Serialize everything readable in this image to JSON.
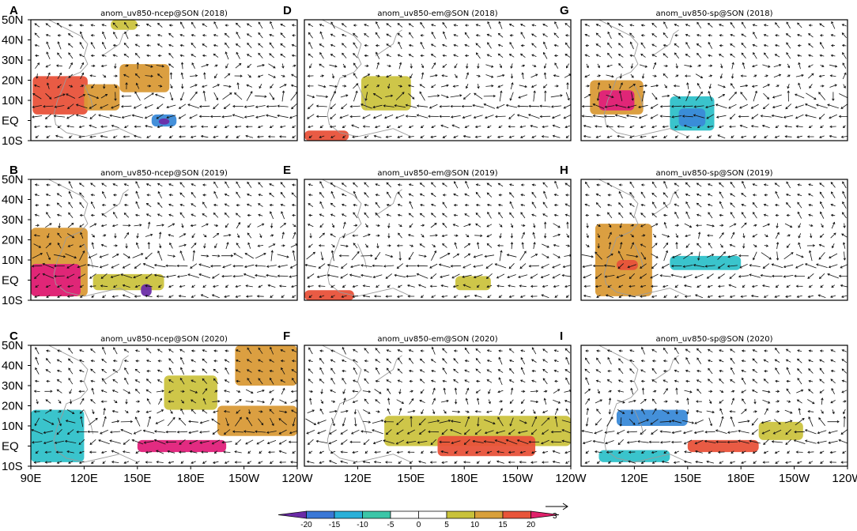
{
  "chart_data": {
    "type": "vector_anomaly_map_grid",
    "units_note": "850-hPa wind anomalies (vectors) with shaded anomaly field, SON",
    "panels": [
      {
        "label": "A",
        "title": "anom_uv850-ncep@SON (2018)",
        "row": 0,
        "col": 0
      },
      {
        "label": "D",
        "title": "anom_uv850-em@SON (2018)",
        "row": 0,
        "col": 1
      },
      {
        "label": "G",
        "title": "anom_uv850-sp@SON (2018)",
        "row": 0,
        "col": 2
      },
      {
        "label": "B",
        "title": "anom_uv850-ncep@SON (2019)",
        "row": 1,
        "col": 0
      },
      {
        "label": "E",
        "title": "anom_uv850-em@SON (2019)",
        "row": 1,
        "col": 1
      },
      {
        "label": "H",
        "title": "anom_uv850-sp@SON (2019)",
        "row": 1,
        "col": 2
      },
      {
        "label": "C",
        "title": "anom_uv850-ncep@SON (2020)",
        "row": 2,
        "col": 0
      },
      {
        "label": "F",
        "title": "anom_uv850-em@SON (2020)",
        "row": 2,
        "col": 1
      },
      {
        "label": "I",
        "title": "anom_uv850-sp@SON (2020)",
        "row": 2,
        "col": 2
      }
    ],
    "y_axis": {
      "ticks": [
        "50N",
        "40N",
        "30N",
        "20N",
        "10N",
        "EQ",
        "10S"
      ],
      "range": [
        -10,
        50
      ]
    },
    "x_axis": [
      {
        "col": 0,
        "ticks": [
          "90E",
          "120E",
          "150E",
          "180E",
          "150W",
          "120W"
        ]
      },
      {
        "col": 1,
        "ticks": [
          "120E",
          "150E",
          "180E",
          "150W",
          "120W"
        ]
      },
      {
        "col": 2,
        "ticks": [
          "120E",
          "150E",
          "180E",
          "150W",
          "120W"
        ]
      }
    ],
    "x_range_lon": [
      90,
      240
    ],
    "colorbar": {
      "ticks": [
        "-20",
        "-15",
        "-10",
        "-5",
        "0",
        "5",
        "10",
        "15",
        "20"
      ],
      "colors": [
        "#6a2aa6",
        "#3a78d6",
        "#2ab0d8",
        "#3cc6a8",
        "#ffffff",
        "#ffffff",
        "#c8c23a",
        "#d8a03a",
        "#e8553a",
        "#e0206a"
      ]
    },
    "reference_vector": {
      "label": "3"
    },
    "shading_colors": {
      "yellow": "#cbc33f",
      "orange": "#d99a37",
      "red": "#e8523a",
      "magenta": "#e0207a",
      "cyan": "#2fc1c9",
      "blue": "#3a8ad8",
      "purple": "#6b2da8"
    },
    "anomaly_patches": [
      {
        "panel": "A",
        "lon0": 91,
        "lon1": 122,
        "lat0": 3,
        "lat1": 22,
        "level": "red"
      },
      {
        "panel": "A",
        "lon0": 120,
        "lon1": 140,
        "lat0": 5,
        "lat1": 18,
        "level": "orange"
      },
      {
        "panel": "A",
        "lon0": 140,
        "lon1": 168,
        "lat0": 14,
        "lat1": 28,
        "level": "orange"
      },
      {
        "panel": "A",
        "lon0": 158,
        "lon1": 172,
        "lat0": -3,
        "lat1": 3,
        "level": "blue"
      },
      {
        "panel": "A",
        "lon0": 162,
        "lon1": 168,
        "lat0": -2,
        "lat1": 1,
        "level": "purple"
      },
      {
        "panel": "A",
        "lon0": 135,
        "lon1": 150,
        "lat0": 45,
        "lat1": 50,
        "level": "yellow"
      },
      {
        "panel": "D",
        "lon0": 122,
        "lon1": 150,
        "lat0": 5,
        "lat1": 22,
        "level": "yellow"
      },
      {
        "panel": "D",
        "lon0": 90,
        "lon1": 115,
        "lat0": -10,
        "lat1": -5,
        "level": "red"
      },
      {
        "panel": "G",
        "lon0": 95,
        "lon1": 125,
        "lat0": 3,
        "lat1": 20,
        "level": "orange"
      },
      {
        "panel": "G",
        "lon0": 100,
        "lon1": 120,
        "lat0": 5,
        "lat1": 15,
        "level": "magenta"
      },
      {
        "panel": "G",
        "lon0": 140,
        "lon1": 165,
        "lat0": -5,
        "lat1": 12,
        "level": "cyan"
      },
      {
        "panel": "G",
        "lon0": 145,
        "lon1": 160,
        "lat0": -3,
        "lat1": 6,
        "level": "blue"
      },
      {
        "panel": "B",
        "lon0": 90,
        "lon1": 122,
        "lat0": -8,
        "lat1": 26,
        "level": "orange"
      },
      {
        "panel": "B",
        "lon0": 90,
        "lon1": 118,
        "lat0": -8,
        "lat1": 8,
        "level": "magenta"
      },
      {
        "panel": "B",
        "lon0": 125,
        "lon1": 165,
        "lat0": -5,
        "lat1": 3,
        "level": "yellow"
      },
      {
        "panel": "B",
        "lon0": 152,
        "lon1": 158,
        "lat0": -8,
        "lat1": -2,
        "level": "purple"
      },
      {
        "panel": "E",
        "lon0": 90,
        "lon1": 118,
        "lat0": -10,
        "lat1": -5,
        "level": "red"
      },
      {
        "panel": "E",
        "lon0": 175,
        "lon1": 195,
        "lat0": -5,
        "lat1": 2,
        "level": "yellow"
      },
      {
        "panel": "H",
        "lon0": 98,
        "lon1": 130,
        "lat0": -8,
        "lat1": 28,
        "level": "orange"
      },
      {
        "panel": "H",
        "lon0": 140,
        "lon1": 180,
        "lat0": 5,
        "lat1": 12,
        "level": "cyan"
      },
      {
        "panel": "H",
        "lon0": 110,
        "lon1": 122,
        "lat0": 5,
        "lat1": 10,
        "level": "red"
      },
      {
        "panel": "C",
        "lon0": 150,
        "lon1": 200,
        "lat0": -3,
        "lat1": 3,
        "level": "magenta"
      },
      {
        "panel": "C",
        "lon0": 195,
        "lon1": 240,
        "lat0": 5,
        "lat1": 20,
        "level": "orange"
      },
      {
        "panel": "C",
        "lon0": 205,
        "lon1": 240,
        "lat0": 30,
        "lat1": 50,
        "level": "orange"
      },
      {
        "panel": "C",
        "lon0": 165,
        "lon1": 195,
        "lat0": 18,
        "lat1": 35,
        "level": "yellow"
      },
      {
        "panel": "C",
        "lon0": 90,
        "lon1": 120,
        "lat0": -8,
        "lat1": 18,
        "level": "cyan"
      },
      {
        "panel": "F",
        "lon0": 135,
        "lon1": 240,
        "lat0": 0,
        "lat1": 15,
        "level": "yellow"
      },
      {
        "panel": "F",
        "lon0": 165,
        "lon1": 220,
        "lat0": -5,
        "lat1": 5,
        "level": "red"
      },
      {
        "panel": "I",
        "lon0": 110,
        "lon1": 150,
        "lat0": 10,
        "lat1": 18,
        "level": "blue"
      },
      {
        "panel": "I",
        "lon0": 150,
        "lon1": 190,
        "lat0": -3,
        "lat1": 3,
        "level": "red"
      },
      {
        "panel": "I",
        "lon0": 190,
        "lon1": 215,
        "lat0": 3,
        "lat1": 12,
        "level": "yellow"
      },
      {
        "panel": "I",
        "lon0": 100,
        "lon1": 140,
        "lat0": -8,
        "lat1": -2,
        "level": "cyan"
      }
    ]
  }
}
